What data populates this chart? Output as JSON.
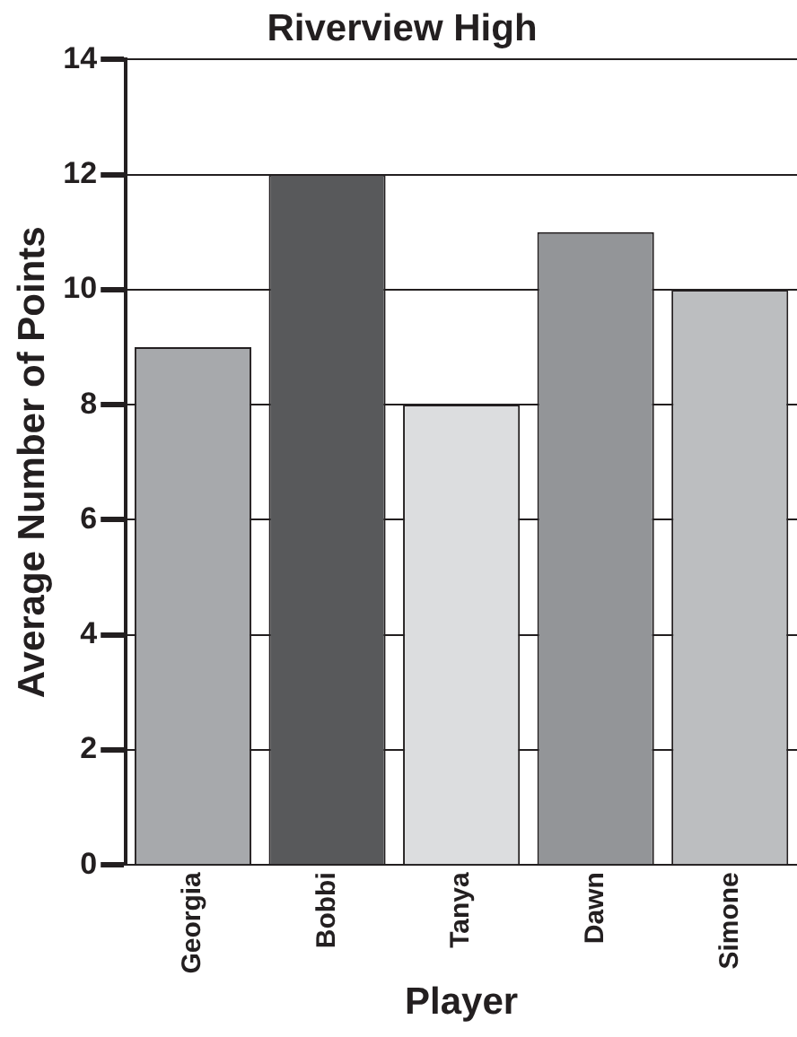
{
  "chart_data": {
    "type": "bar",
    "title": "Riverview High",
    "xlabel": "Player",
    "ylabel": "Average Number of Points",
    "categories": [
      "Georgia",
      "Bobbi",
      "Tanya",
      "Dawn",
      "Simone"
    ],
    "values": [
      9,
      12,
      8,
      11,
      10
    ],
    "colors": [
      "#a7a9ac",
      "#58595b",
      "#dcdddf",
      "#939598",
      "#bcbec0"
    ],
    "ylim": [
      0,
      14
    ],
    "yticks": [
      0,
      2,
      4,
      6,
      8,
      10,
      12,
      14
    ],
    "grid": "y"
  }
}
